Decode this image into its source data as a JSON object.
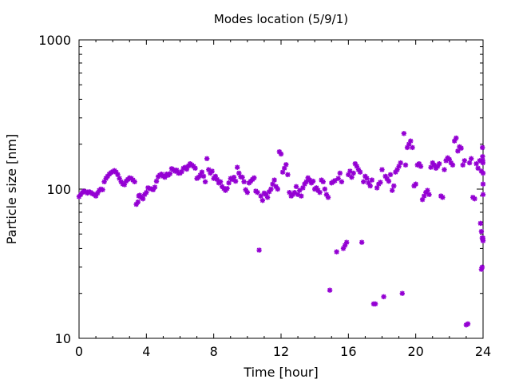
{
  "chart_data": {
    "type": "scatter",
    "title": "Modes location (5/9/1)",
    "xlabel": "Time [hour]",
    "ylabel": "Particle size [nm]",
    "xlim": [
      0,
      24
    ],
    "ylim": [
      10,
      1000
    ],
    "yscale": "log",
    "grid": false,
    "legend": "none",
    "marker_color": "#9400d3",
    "x_ticks": [
      "0",
      "4",
      "8",
      "12",
      "16",
      "20",
      "24"
    ],
    "y_ticks": [
      "10",
      "100",
      "1000"
    ],
    "series": [
      {
        "points": [
          [
            0.0,
            89
          ],
          [
            0.1,
            92
          ],
          [
            0.2,
            95
          ],
          [
            0.3,
            97
          ],
          [
            0.4,
            96
          ],
          [
            0.5,
            94
          ],
          [
            0.6,
            96
          ],
          [
            0.7,
            95
          ],
          [
            0.8,
            93
          ],
          [
            0.9,
            92
          ],
          [
            1.0,
            90
          ],
          [
            1.1,
            94
          ],
          [
            1.2,
            98
          ],
          [
            1.3,
            100
          ],
          [
            1.4,
            99
          ],
          [
            1.5,
            112
          ],
          [
            1.6,
            118
          ],
          [
            1.7,
            122
          ],
          [
            1.8,
            126
          ],
          [
            1.9,
            129
          ],
          [
            2.0,
            131
          ],
          [
            2.1,
            133
          ],
          [
            2.2,
            130
          ],
          [
            2.3,
            125
          ],
          [
            2.4,
            118
          ],
          [
            2.5,
            112
          ],
          [
            2.6,
            108
          ],
          [
            2.7,
            107
          ],
          [
            2.8,
            113
          ],
          [
            2.9,
            116
          ],
          [
            3.0,
            119
          ],
          [
            3.1,
            118
          ],
          [
            3.2,
            115
          ],
          [
            3.3,
            112
          ],
          [
            3.4,
            79
          ],
          [
            3.5,
            82
          ],
          [
            3.55,
            90
          ],
          [
            3.6,
            91
          ],
          [
            3.7,
            88
          ],
          [
            3.8,
            86
          ],
          [
            3.9,
            92
          ],
          [
            4.0,
            95
          ],
          [
            4.1,
            102
          ],
          [
            4.2,
            101
          ],
          [
            4.3,
            100
          ],
          [
            4.4,
            99
          ],
          [
            4.5,
            103
          ],
          [
            4.6,
            113
          ],
          [
            4.7,
            121
          ],
          [
            4.8,
            124
          ],
          [
            4.9,
            126
          ],
          [
            5.0,
            122
          ],
          [
            5.1,
            120
          ],
          [
            5.2,
            126
          ],
          [
            5.3,
            124
          ],
          [
            5.4,
            127
          ],
          [
            5.5,
            137
          ],
          [
            5.6,
            135
          ],
          [
            5.7,
            132
          ],
          [
            5.8,
            134
          ],
          [
            5.9,
            128
          ],
          [
            6.0,
            128
          ],
          [
            6.1,
            131
          ],
          [
            6.2,
            138
          ],
          [
            6.3,
            140
          ],
          [
            6.4,
            136
          ],
          [
            6.5,
            143
          ],
          [
            6.6,
            148
          ],
          [
            6.7,
            145
          ],
          [
            6.8,
            142
          ],
          [
            6.9,
            138
          ],
          [
            7.0,
            118
          ],
          [
            7.1,
            120
          ],
          [
            7.2,
            124
          ],
          [
            7.3,
            130
          ],
          [
            7.4,
            122
          ],
          [
            7.5,
            112
          ],
          [
            7.6,
            160
          ],
          [
            7.7,
            135
          ],
          [
            7.8,
            128
          ],
          [
            7.9,
            132
          ],
          [
            8.0,
            118
          ],
          [
            8.1,
            122
          ],
          [
            8.2,
            116
          ],
          [
            8.3,
            110
          ],
          [
            8.4,
            112
          ],
          [
            8.5,
            104
          ],
          [
            8.6,
            101
          ],
          [
            8.7,
            98
          ],
          [
            8.8,
            101
          ],
          [
            8.9,
            110
          ],
          [
            9.0,
            118
          ],
          [
            9.1,
            116
          ],
          [
            9.2,
            120
          ],
          [
            9.3,
            113
          ],
          [
            9.4,
            140
          ],
          [
            9.5,
            128
          ],
          [
            9.6,
            121
          ],
          [
            9.7,
            120
          ],
          [
            9.8,
            112
          ],
          [
            9.9,
            99
          ],
          [
            10.0,
            95
          ],
          [
            10.1,
            110
          ],
          [
            10.2,
            113
          ],
          [
            10.3,
            116
          ],
          [
            10.4,
            119
          ],
          [
            10.5,
            97
          ],
          [
            10.6,
            95
          ],
          [
            10.7,
            39
          ],
          [
            10.8,
            90
          ],
          [
            10.9,
            84
          ],
          [
            11.0,
            94
          ],
          [
            11.1,
            92
          ],
          [
            11.2,
            88
          ],
          [
            11.3,
            96
          ],
          [
            11.4,
            100
          ],
          [
            11.5,
            108
          ],
          [
            11.6,
            115
          ],
          [
            11.7,
            104
          ],
          [
            11.8,
            100
          ],
          [
            11.9,
            178
          ],
          [
            12.0,
            172
          ],
          [
            12.1,
            130
          ],
          [
            12.2,
            138
          ],
          [
            12.3,
            146
          ],
          [
            12.4,
            125
          ],
          [
            12.5,
            95
          ],
          [
            12.6,
            90
          ],
          [
            12.7,
            92
          ],
          [
            12.8,
            95
          ],
          [
            12.9,
            104
          ],
          [
            13.0,
            92
          ],
          [
            13.1,
            98
          ],
          [
            13.2,
            90
          ],
          [
            13.3,
            102
          ],
          [
            13.4,
            108
          ],
          [
            13.5,
            112
          ],
          [
            13.6,
            119
          ],
          [
            13.7,
            115
          ],
          [
            13.8,
            110
          ],
          [
            13.9,
            113
          ],
          [
            14.0,
            100
          ],
          [
            14.1,
            102
          ],
          [
            14.2,
            98
          ],
          [
            14.3,
            95
          ],
          [
            14.4,
            115
          ],
          [
            14.5,
            112
          ],
          [
            14.6,
            100
          ],
          [
            14.7,
            92
          ],
          [
            14.8,
            88
          ],
          [
            14.9,
            21
          ],
          [
            15.0,
            110
          ],
          [
            15.1,
            112
          ],
          [
            15.2,
            114
          ],
          [
            15.3,
            38
          ],
          [
            15.4,
            118
          ],
          [
            15.5,
            128
          ],
          [
            15.6,
            112
          ],
          [
            15.7,
            40
          ],
          [
            15.8,
            42
          ],
          [
            15.9,
            44
          ],
          [
            16.0,
            125
          ],
          [
            16.1,
            132
          ],
          [
            16.2,
            120
          ],
          [
            16.3,
            128
          ],
          [
            16.4,
            148
          ],
          [
            16.5,
            142
          ],
          [
            16.6,
            135
          ],
          [
            16.7,
            130
          ],
          [
            16.8,
            44
          ],
          [
            16.9,
            112
          ],
          [
            17.0,
            122
          ],
          [
            17.1,
            118
          ],
          [
            17.2,
            110
          ],
          [
            17.3,
            105
          ],
          [
            17.4,
            115
          ],
          [
            17.5,
            17
          ],
          [
            17.6,
            17
          ],
          [
            17.7,
            102
          ],
          [
            17.8,
            108
          ],
          [
            17.9,
            111
          ],
          [
            18.0,
            135
          ],
          [
            18.1,
            19
          ],
          [
            18.2,
            122
          ],
          [
            18.3,
            117
          ],
          [
            18.4,
            113
          ],
          [
            18.5,
            125
          ],
          [
            18.6,
            98
          ],
          [
            18.7,
            105
          ],
          [
            18.8,
            130
          ],
          [
            18.9,
            135
          ],
          [
            19.0,
            142
          ],
          [
            19.1,
            150
          ],
          [
            19.2,
            20
          ],
          [
            19.3,
            236
          ],
          [
            19.4,
            145
          ],
          [
            19.5,
            190
          ],
          [
            19.6,
            200
          ],
          [
            19.7,
            210
          ],
          [
            19.8,
            190
          ],
          [
            19.9,
            105
          ],
          [
            20.0,
            108
          ],
          [
            20.1,
            145
          ],
          [
            20.2,
            148
          ],
          [
            20.3,
            142
          ],
          [
            20.4,
            85
          ],
          [
            20.5,
            90
          ],
          [
            20.6,
            95
          ],
          [
            20.7,
            98
          ],
          [
            20.8,
            92
          ],
          [
            20.9,
            140
          ],
          [
            21.0,
            150
          ],
          [
            21.1,
            145
          ],
          [
            21.2,
            138
          ],
          [
            21.3,
            142
          ],
          [
            21.4,
            148
          ],
          [
            21.5,
            90
          ],
          [
            21.6,
            88
          ],
          [
            21.7,
            135
          ],
          [
            21.8,
            155
          ],
          [
            21.9,
            162
          ],
          [
            22.0,
            158
          ],
          [
            22.1,
            150
          ],
          [
            22.2,
            145
          ],
          [
            22.3,
            210
          ],
          [
            22.4,
            220
          ],
          [
            22.5,
            180
          ],
          [
            22.6,
            192
          ],
          [
            22.7,
            188
          ],
          [
            22.8,
            145
          ],
          [
            22.9,
            155
          ],
          [
            23.0,
            12.3
          ],
          [
            23.1,
            12.5
          ],
          [
            23.2,
            150
          ],
          [
            23.3,
            160
          ],
          [
            23.4,
            88
          ],
          [
            23.5,
            86
          ],
          [
            23.6,
            148
          ],
          [
            23.7,
            138
          ],
          [
            23.8,
            155
          ],
          [
            23.9,
            132
          ],
          [
            23.9,
            29
          ],
          [
            23.95,
            30
          ],
          [
            23.96,
            190
          ],
          [
            23.97,
            165
          ],
          [
            23.98,
            155
          ],
          [
            23.99,
            150
          ],
          [
            24.0,
            128
          ],
          [
            24.0,
            108
          ],
          [
            24.0,
            92
          ],
          [
            23.85,
            59
          ],
          [
            23.9,
            52
          ],
          [
            23.95,
            47
          ],
          [
            24.0,
            45
          ],
          [
            23.98,
            46
          ],
          [
            23.99,
            47
          ]
        ]
      }
    ]
  }
}
